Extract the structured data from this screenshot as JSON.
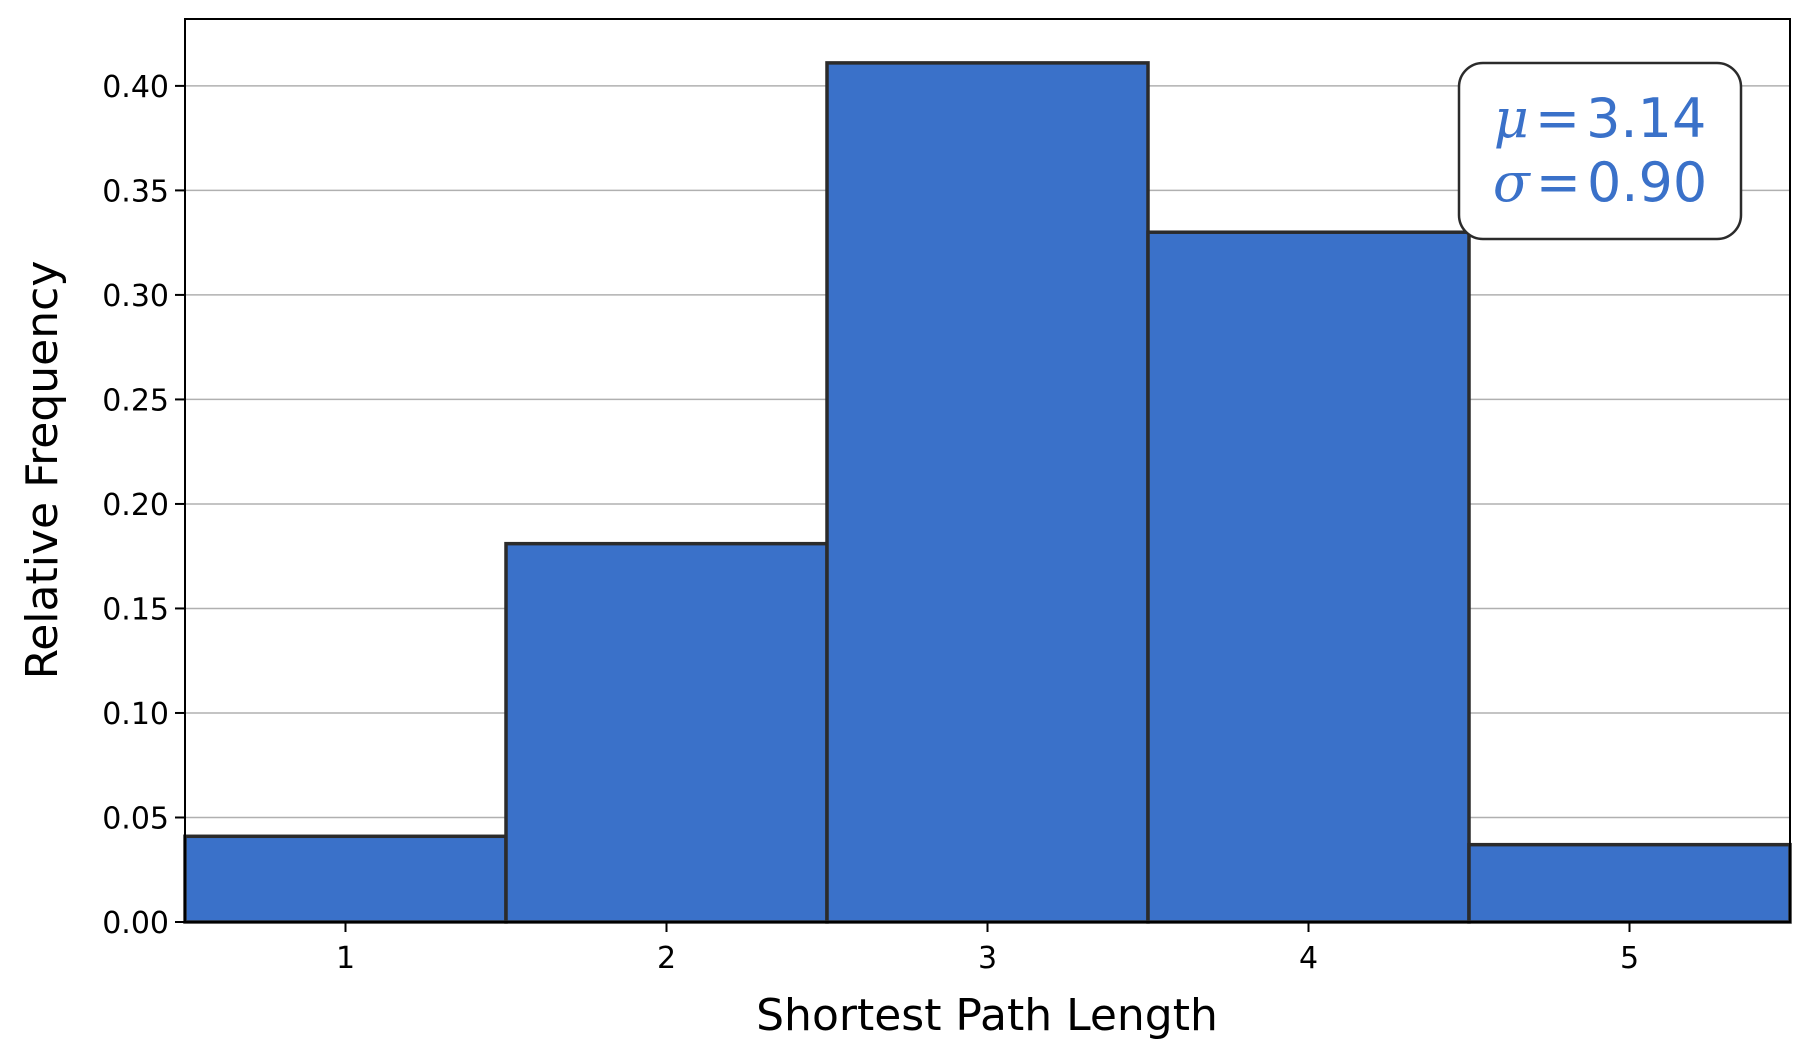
{
  "chart_data": {
    "type": "bar",
    "categories": [
      "1",
      "2",
      "3",
      "4",
      "5"
    ],
    "values": [
      0.041,
      0.181,
      0.411,
      0.33,
      0.037
    ],
    "xlabel": "Shortest Path Length",
    "ylabel": "Relative Frequency",
    "xlim": [
      0.5,
      5.5
    ],
    "ylim": [
      0,
      0.432
    ],
    "yticks": [
      "0.00",
      "0.05",
      "0.10",
      "0.15",
      "0.20",
      "0.25",
      "0.30",
      "0.35",
      "0.40"
    ],
    "grid": "horizontal",
    "annotation": {
      "mu_symbol": "μ",
      "mu_value": "3.14",
      "sigma_symbol": "σ",
      "sigma_value": "0.90",
      "equals": "=",
      "placement": "top-right"
    },
    "colors": {
      "bar_fill": "#3a71c9",
      "bar_edge": "#2b2b2b",
      "grid": "#b0b0b0",
      "annotation_text": "#3a71c9",
      "annotation_border": "#2b2b2b"
    }
  }
}
